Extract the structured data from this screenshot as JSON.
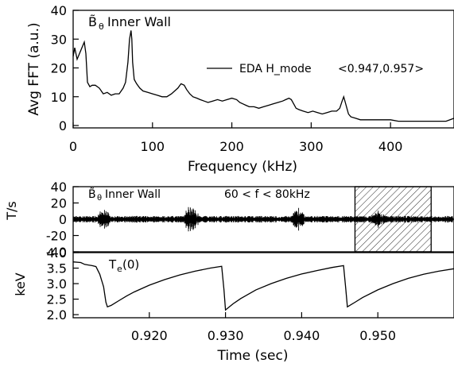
{
  "chart_data": [
    {
      "type": "line",
      "panel": "fft",
      "annotation_symbol": "B̃",
      "annotation_sub": "θ",
      "annotation_text": "Inner Wall",
      "ylabel": "Avg FFT (a.u.)",
      "xlabel": "Frequency (kHz)",
      "xlim": [
        0,
        480
      ],
      "ylim": [
        0,
        40
      ],
      "x_ticks": [
        "0",
        "100",
        "200",
        "300",
        "400"
      ],
      "y_ticks": [
        "0",
        "10",
        "20",
        "30",
        "40"
      ],
      "legend_position": "right",
      "series": [
        {
          "name": "EDA H_mode",
          "range_label": "<0.947,0.957>",
          "x": [
            0,
            2,
            5,
            8,
            11,
            14,
            16,
            18,
            21,
            24,
            28,
            33,
            38,
            43,
            48,
            53,
            58,
            63,
            66,
            69,
            71,
            73,
            74,
            75,
            77,
            80,
            84,
            88,
            94,
            100,
            106,
            112,
            118,
            124,
            128,
            132,
            136,
            140,
            143,
            147,
            151,
            156,
            160,
            165,
            170,
            176,
            182,
            188,
            194,
            200,
            206,
            210,
            214,
            218,
            222,
            228,
            234,
            240,
            246,
            252,
            258,
            264,
            268,
            272,
            275,
            278,
            281,
            285,
            290,
            296,
            302,
            308,
            314,
            320,
            326,
            332,
            336,
            339,
            341,
            343,
            345,
            347,
            350,
            356,
            362,
            370,
            380,
            390,
            400,
            410,
            420,
            430,
            440,
            450,
            460,
            470,
            480
          ],
          "y": [
            24,
            27,
            23,
            25,
            27,
            29,
            25,
            15,
            13.5,
            14,
            14,
            13,
            11,
            11.5,
            10.5,
            11,
            11,
            13,
            15,
            22,
            30,
            33,
            30,
            22,
            16,
            14.5,
            13,
            12,
            11.5,
            11,
            10.5,
            10,
            10,
            11,
            12,
            13,
            14.5,
            14,
            12.5,
            11,
            10,
            9.5,
            9,
            8.5,
            8,
            8.5,
            9,
            8.5,
            9,
            9.5,
            9,
            8,
            7.5,
            7,
            6.5,
            6.5,
            6,
            6.5,
            7,
            7.5,
            8,
            8.5,
            9,
            9.5,
            9,
            7.5,
            6,
            5.5,
            5,
            4.5,
            5,
            4.5,
            4,
            4.5,
            5,
            5,
            6,
            8.5,
            10,
            8,
            6,
            4,
            3,
            2.5,
            2,
            2,
            2,
            2,
            2,
            1.5,
            1.5,
            1.5,
            1.5,
            1.5,
            1.5,
            1.5,
            2.5
          ]
        }
      ]
    },
    {
      "type": "line",
      "panel": "signal",
      "annotation_symbol": "B̃",
      "annotation_sub": "θ",
      "annotation_text": "Inner Wall",
      "filter_text": "60 < f <  80kHz",
      "ylabel": "T/s",
      "ylim": [
        -40,
        40
      ],
      "y_ticks": [
        "40",
        "20",
        "0",
        "-20",
        "-40"
      ],
      "xlim": [
        0.91,
        0.96
      ],
      "highlight_range": [
        0.947,
        0.957
      ],
      "bursts": [
        {
          "t": 0.9141,
          "amp": 14
        },
        {
          "t": 0.9255,
          "amp": 20
        },
        {
          "t": 0.9395,
          "amp": 15
        },
        {
          "t": 0.95,
          "amp": 13
        }
      ],
      "background_amp": 4
    },
    {
      "type": "line",
      "panel": "temperature",
      "annotation_text": "T",
      "annotation_sub": "e",
      "annotation_suffix": "(0)",
      "ylabel": "keV",
      "xlabel": "Time (sec)",
      "xlim": [
        0.91,
        0.96
      ],
      "ylim": [
        1.9,
        4.0
      ],
      "y_ticks": [
        "4.0",
        "3.5",
        "3.0",
        "2.5",
        "2.0"
      ],
      "x_ticks": [
        "0.920",
        "0.930",
        "0.940",
        "0.950"
      ],
      "x_tick_values": [
        0.92,
        0.93,
        0.94,
        0.95
      ],
      "series": [
        {
          "name": "Te(0)",
          "x": [
            0.91,
            0.911,
            0.9115,
            0.912,
            0.9125,
            0.913,
            0.9135,
            0.914,
            0.9143,
            0.9145,
            0.915,
            0.916,
            0.917,
            0.918,
            0.92,
            0.922,
            0.924,
            0.926,
            0.928,
            0.9295,
            0.9298,
            0.93,
            0.931,
            0.932,
            0.934,
            0.936,
            0.938,
            0.94,
            0.942,
            0.944,
            0.9455,
            0.9458,
            0.946,
            0.947,
            0.948,
            0.95,
            0.952,
            0.954,
            0.956,
            0.958,
            0.96
          ],
          "y": [
            3.7,
            3.68,
            3.62,
            3.6,
            3.58,
            3.55,
            3.3,
            2.9,
            2.4,
            2.25,
            2.3,
            2.45,
            2.6,
            2.73,
            2.95,
            3.13,
            3.28,
            3.4,
            3.5,
            3.56,
            2.8,
            2.15,
            2.35,
            2.52,
            2.8,
            3.0,
            3.17,
            3.31,
            3.42,
            3.52,
            3.58,
            2.8,
            2.25,
            2.4,
            2.55,
            2.8,
            3.0,
            3.17,
            3.3,
            3.4,
            3.48
          ]
        }
      ]
    }
  ]
}
